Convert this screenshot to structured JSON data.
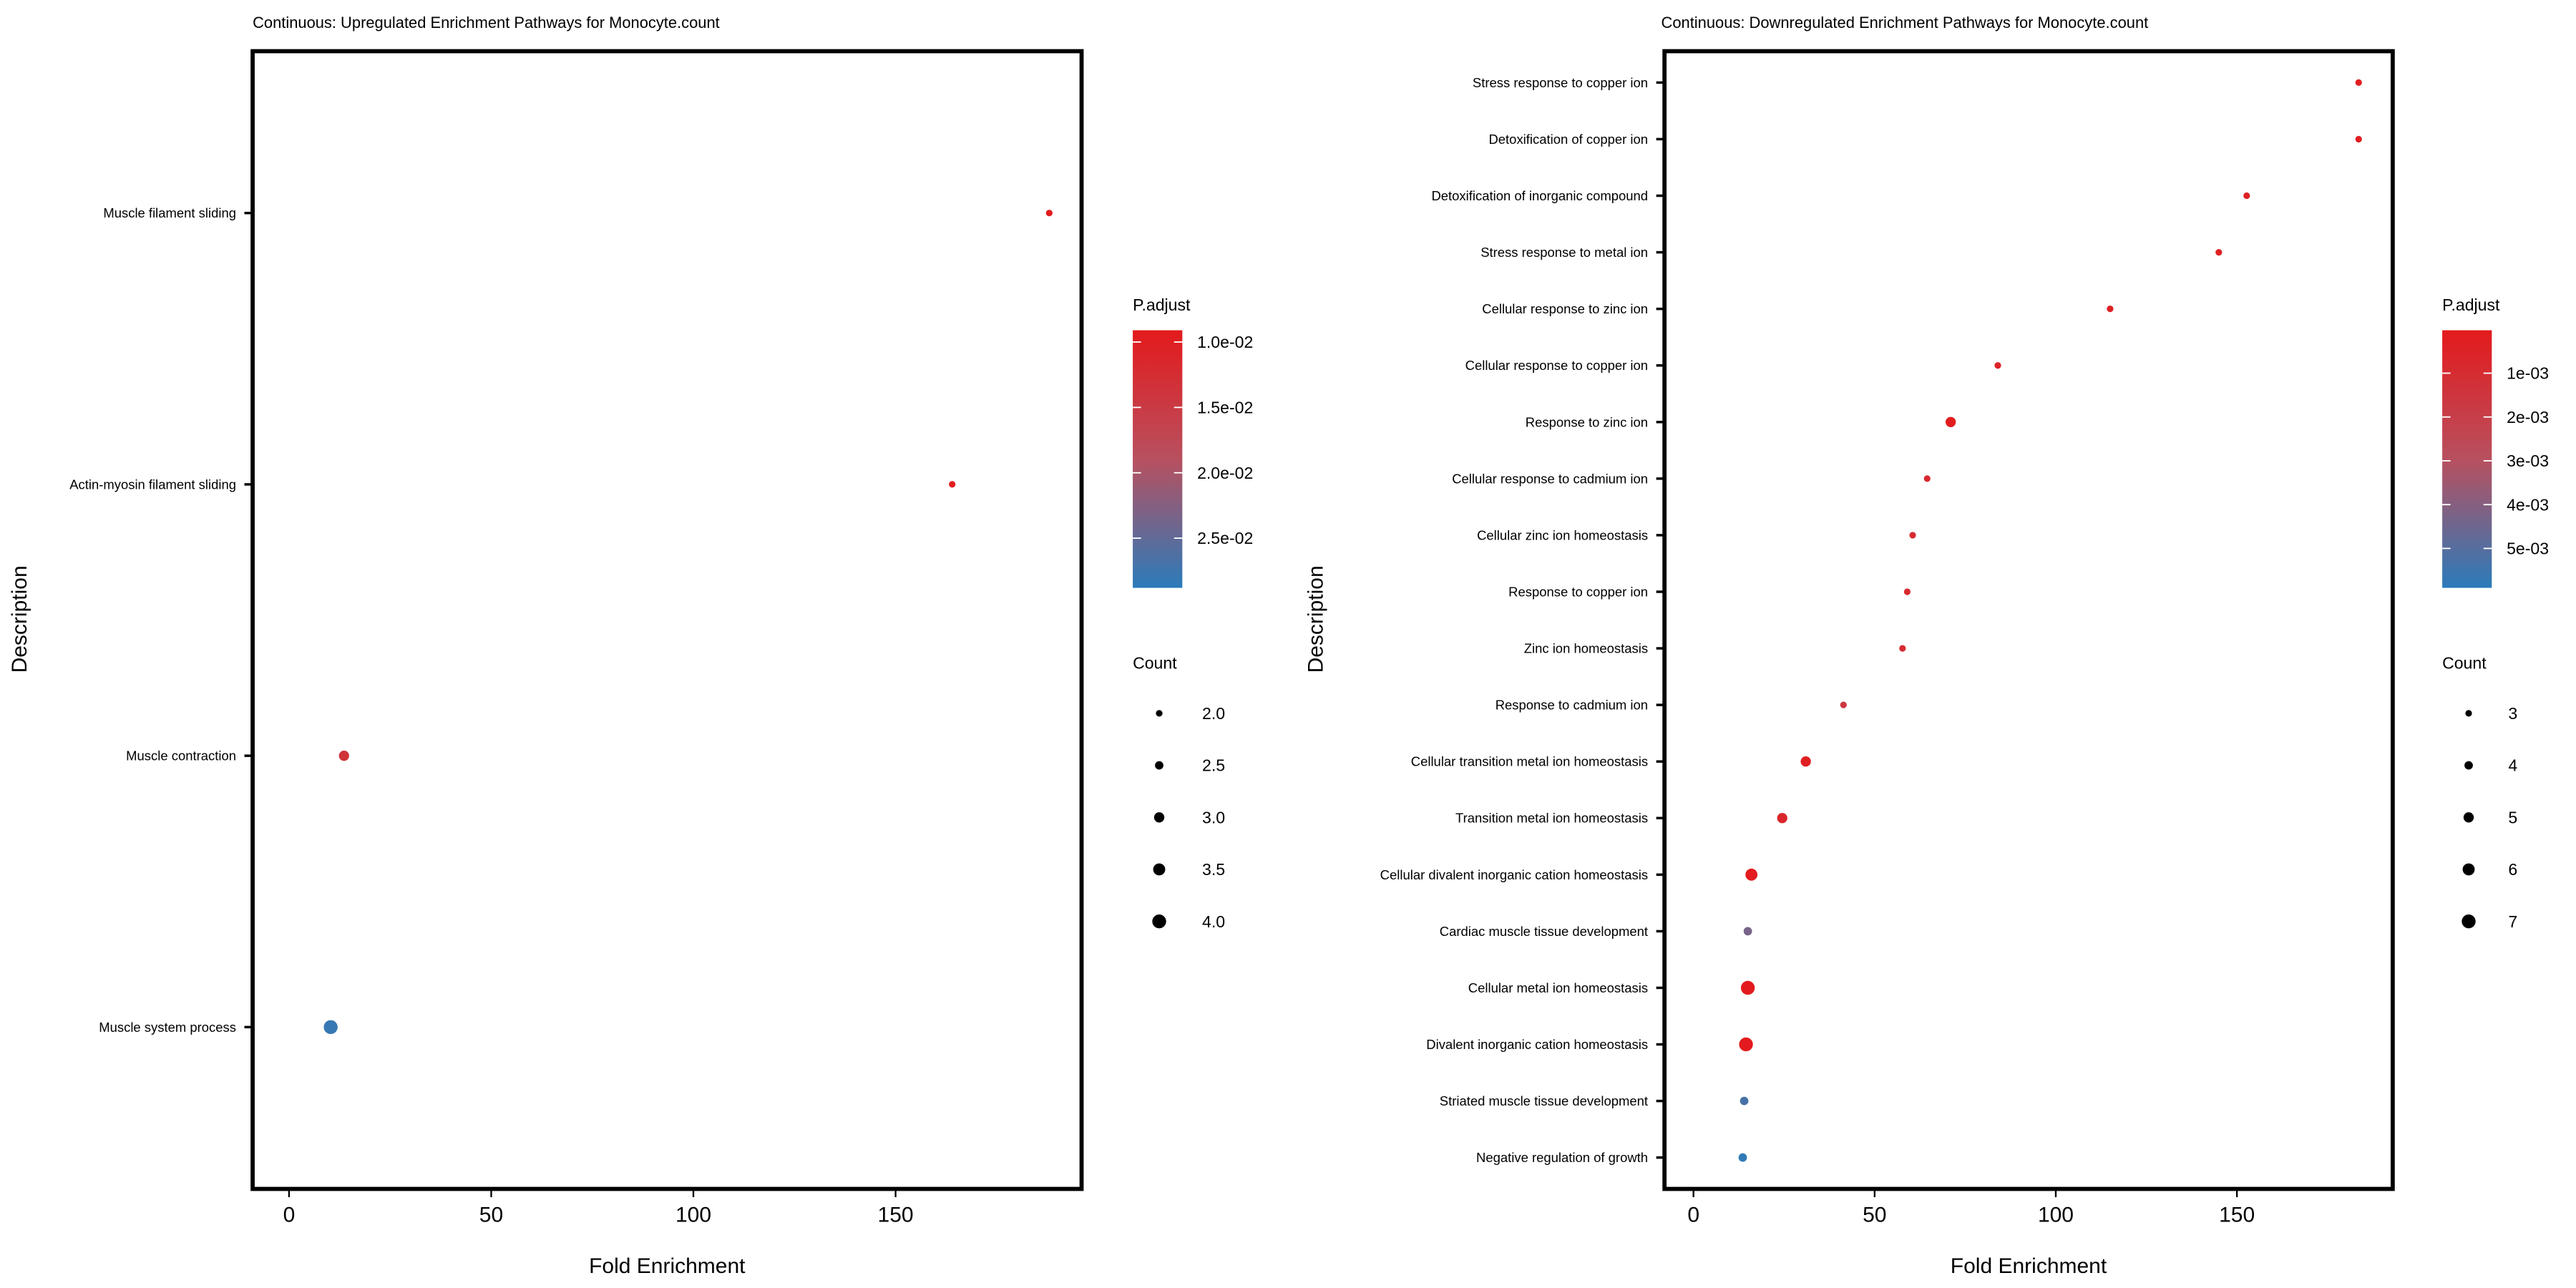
{
  "chart_data": [
    {
      "type": "scatter",
      "title": "Continuous: Upregulated Enrichment Pathways for Monocyte.count",
      "xlabel": "Fold Enrichment",
      "ylabel": "Description",
      "xlim": [
        -9,
        196
      ],
      "xticks": [
        0,
        50,
        100,
        150
      ],
      "categories": [
        "Muscle filament sliding",
        "Actin-myosin filament sliding",
        "Muscle contraction",
        "Muscle system process"
      ],
      "x": [
        188,
        164,
        13.6,
        10.3
      ],
      "count": [
        2,
        2,
        3,
        4
      ],
      "p_adjust": [
        0.0095,
        0.0098,
        0.0135,
        0.028
      ],
      "color_legend": {
        "title": "P.adjust",
        "range": [
          0.0091,
          0.0288
        ],
        "ticks": [
          0.01,
          0.015,
          0.02,
          0.025
        ],
        "tick_labels": [
          "1.0e-02",
          "1.5e-02",
          "2.0e-02",
          "2.5e-02"
        ],
        "low_color": "#e41a1c",
        "high_color": "#2b7bba"
      },
      "size_legend": {
        "title": "Count",
        "values": [
          2.0,
          2.5,
          3.0,
          3.5,
          4.0
        ],
        "labels": [
          "2.0",
          "2.5",
          "3.0",
          "3.5",
          "4.0"
        ],
        "size_range": [
          2,
          4
        ]
      }
    },
    {
      "type": "scatter",
      "title": "Continuous: Downregulated Enrichment Pathways for Monocyte.count",
      "xlabel": "Fold Enrichment",
      "ylabel": "Description",
      "xlim": [
        -8,
        193
      ],
      "xticks": [
        0,
        50,
        100,
        150
      ],
      "categories": [
        "Stress response to copper ion",
        "Detoxification of copper ion",
        "Detoxification of inorganic compound",
        "Stress response to metal ion",
        "Cellular response to zinc ion",
        "Cellular response to copper ion",
        "Response to zinc ion",
        "Cellular response to cadmium ion",
        "Cellular zinc ion homeostasis",
        "Response to copper ion",
        "Zinc ion homeostasis",
        "Response to cadmium ion",
        "Cellular transition metal ion homeostasis",
        "Transition metal ion homeostasis",
        "Cellular divalent inorganic cation homeostasis",
        "Cardiac muscle tissue development",
        "Cellular metal ion homeostasis",
        "Divalent inorganic cation homeostasis",
        "Striated muscle tissue development",
        "Negative regulation of growth"
      ],
      "x": [
        183.6,
        183.6,
        152.7,
        145,
        115,
        84,
        71,
        64.5,
        60.5,
        59,
        57.7,
        41.4,
        31,
        24.5,
        16,
        15,
        15,
        14.5,
        14,
        13.6
      ],
      "count": [
        3,
        3,
        3,
        3,
        3,
        3,
        5,
        3,
        3,
        3,
        3,
        3,
        5,
        5,
        6,
        4,
        7,
        7,
        4,
        4
      ],
      "p_adjust": [
        0.0002,
        0.0002,
        0.0004,
        0.0004,
        0.0004,
        0.0005,
        0.0002,
        0.0008,
        0.0009,
        0.0009,
        0.001,
        0.0016,
        0.0003,
        0.0007,
        0.0001,
        0.0043,
        0.0001,
        0.0001,
        0.0053,
        0.0058
      ],
      "color_legend": {
        "title": "P.adjust",
        "range": [
          2e-05,
          0.0059
        ],
        "ticks": [
          0.001,
          0.002,
          0.003,
          0.004,
          0.005
        ],
        "tick_labels": [
          "1e-03",
          "2e-03",
          "3e-03",
          "4e-03",
          "5e-03"
        ],
        "low_color": "#e41a1c",
        "high_color": "#2b7bba"
      },
      "size_legend": {
        "title": "Count",
        "values": [
          3,
          4,
          5,
          6,
          7
        ],
        "labels": [
          "3",
          "4",
          "5",
          "6",
          "7"
        ],
        "size_range": [
          3,
          7
        ]
      }
    }
  ]
}
